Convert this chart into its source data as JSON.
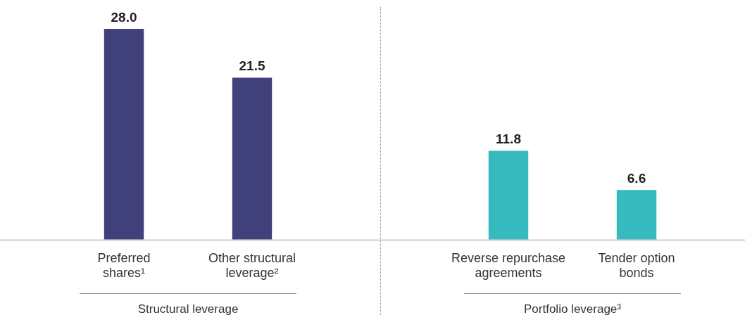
{
  "chart_data": {
    "type": "bar",
    "categories": [
      "Preferred shares¹",
      "Other structural leverage²",
      null,
      "Reverse repurchase agreements",
      "Tender option bonds"
    ],
    "values": [
      28.0,
      21.5,
      null,
      11.8,
      6.6
    ],
    "value_labels": [
      "28.0",
      "21.5",
      null,
      "11.8",
      "6.6"
    ],
    "colors": [
      "#40407a",
      "#40407a",
      null,
      "#36babe",
      "#36babe"
    ],
    "ylim": [
      0,
      28
    ],
    "tick_labels": "x",
    "legend": false,
    "annotations": [
      "Structural leverage",
      "Portfolio leverage³"
    ]
  }
}
